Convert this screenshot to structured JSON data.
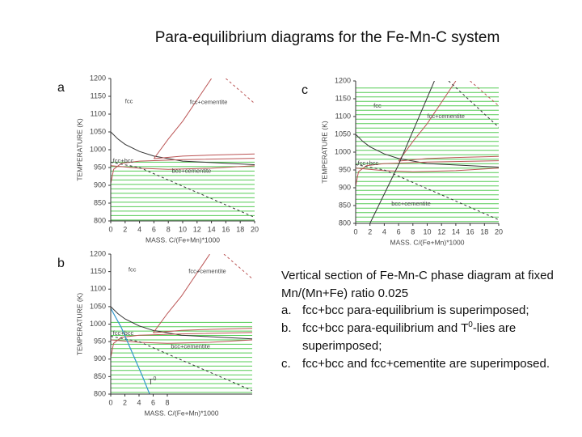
{
  "title": "Para-equilibrium diagrams for the Fe-Mn-C system",
  "panels": [
    {
      "letter": "a",
      "ylabel": "TEMPERATURE (K)",
      "xlabel": "MASS. C/(Fe+Mn)*1000",
      "yticks": [
        "1200",
        "1150",
        "1100",
        "1050",
        "1000",
        "950",
        "900",
        "850",
        "800"
      ],
      "xticks": [
        "0",
        "2",
        "4",
        "6",
        "8",
        "10",
        "12",
        "14",
        "16",
        "18",
        "20"
      ],
      "regions": [
        "fcc",
        "fcc+cementite",
        "fcc+bcc",
        "bcc+cementite"
      ]
    },
    {
      "letter": "c",
      "ylabel": "TEMPERATURE (K)",
      "xlabel": "MASS. C/(Fe+Mn)*1000",
      "yticks": [
        "1200",
        "1150",
        "1100",
        "1050",
        "1000",
        "950",
        "900",
        "850",
        "800"
      ],
      "xticks": [
        "0",
        "2",
        "4",
        "6",
        "8",
        "10",
        "12",
        "14",
        "16",
        "18",
        "20"
      ],
      "regions": [
        "fcc",
        "fcc+cementite",
        "fcc+bcc",
        "bcc+cementite"
      ]
    },
    {
      "letter": "b",
      "ylabel": "TEMPERATURE (K)",
      "xlabel": "MASS. C/(Fe+Mn)*1000",
      "yticks": [
        "1200",
        "1150",
        "1100",
        "1050",
        "1000",
        "950",
        "900",
        "850",
        "800"
      ],
      "xticks": [
        "0",
        "2",
        "4",
        "6",
        "8"
      ],
      "regions": [
        "fcc",
        "fcc+cementite",
        "fcc+bcc",
        "bcc+cementite"
      ],
      "t0": {
        "base": "T",
        "sup": "0"
      }
    }
  ],
  "notes": {
    "intro": "Vertical section of Fe-Mn-C phase diagram at fixed Mn/(Mn+Fe) ratio 0.025",
    "items": [
      {
        "label": "a.",
        "text": "fcc+bcc para-equilibrium is superimposed;"
      },
      {
        "label": "b.",
        "text": "fcc+bcc para-equilibrium and T",
        "sup": "0",
        "tail": "-lies are superimposed;"
      },
      {
        "label": "c.",
        "text": "fcc+bcc and fcc+cementite are superimposed."
      }
    ]
  }
}
